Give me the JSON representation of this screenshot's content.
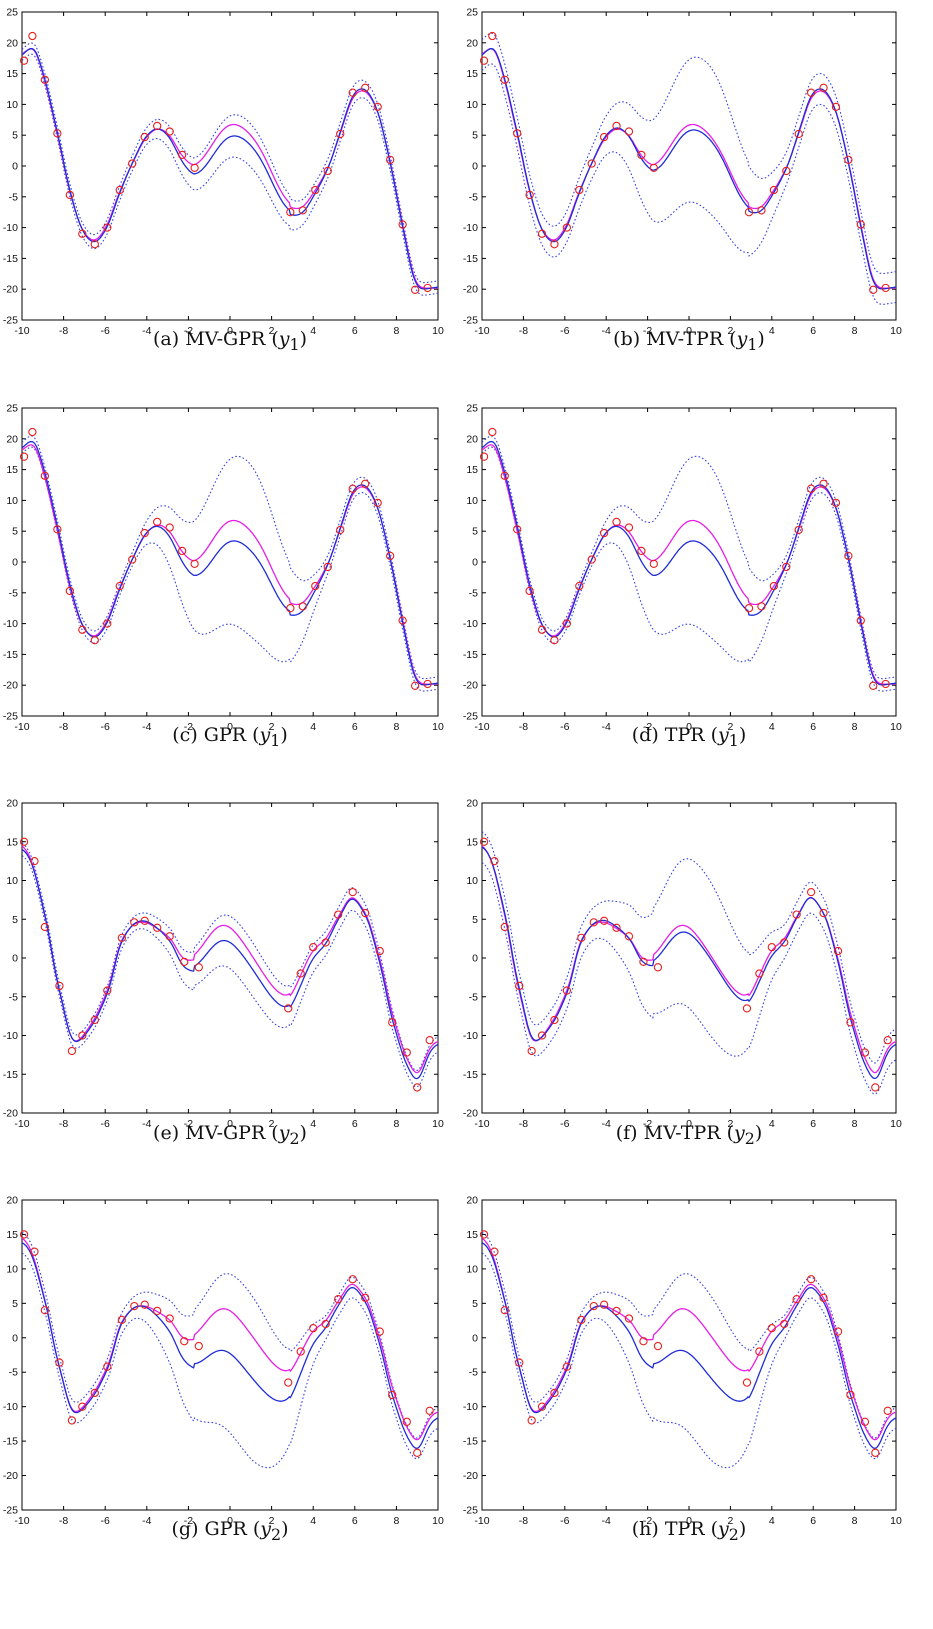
{
  "colors": {
    "observation_marker": "#e8201c",
    "mean_line": "#1f2cd6",
    "true_function": "#e61ee6",
    "band_line": "#3a44e0"
  },
  "chart_data": [
    {
      "type": "line",
      "panel": "a",
      "caption_prefix": "(a)  MV-GPR (",
      "caption_var": "y",
      "caption_sub": "1",
      "caption_suffix": ")",
      "xlim": [
        -10,
        10
      ],
      "ylim": [
        -25,
        25
      ],
      "xticks": [
        "-10",
        "-8",
        "-6",
        "-4",
        "-2",
        "0",
        "2",
        "4",
        "6",
        "8",
        "10"
      ],
      "yticks": [
        "-25",
        "-20",
        "-15",
        "-10",
        "-5",
        "0",
        "5",
        "10",
        "15",
        "20",
        "25"
      ],
      "grid": false,
      "model": "y1",
      "band_width": [
        0.9,
        1.2,
        3.5,
        1.5,
        1.0
      ],
      "mean_offset": [
        0.0,
        0.0,
        -2.0,
        0.0,
        0.0
      ],
      "series_points": {
        "observations": {
          "x": [
            -9.9,
            -9.5,
            -8.9,
            -8.3,
            -7.7,
            -7.1,
            -6.5,
            -5.9,
            -5.3,
            -4.7,
            -4.1,
            -3.5,
            -2.9,
            -2.3,
            -1.7,
            2.9,
            3.5,
            4.1,
            4.7,
            5.3,
            5.9,
            6.5,
            7.1,
            7.7,
            8.3,
            8.9,
            9.5
          ],
          "y": [
            17.1,
            21.1,
            14.0,
            5.3,
            -4.7,
            -11.0,
            -12.7,
            -10.0,
            -3.9,
            0.4,
            4.7,
            6.5,
            5.6,
            1.8,
            -0.3,
            -7.5,
            -7.2,
            -3.9,
            -0.8,
            5.2,
            11.9,
            12.7,
            9.6,
            1.0,
            -9.5,
            -20.1,
            -19.8
          ]
        }
      }
    },
    {
      "type": "line",
      "panel": "b",
      "caption_prefix": "(b)  MV-TPR (",
      "caption_var": "y",
      "caption_sub": "1",
      "caption_suffix": ")",
      "xlim": [
        -10,
        10
      ],
      "ylim": [
        -25,
        25
      ],
      "xticks": [
        "-10",
        "-8",
        "-6",
        "-4",
        "-2",
        "0",
        "2",
        "4",
        "6",
        "8",
        "10"
      ],
      "yticks": [
        "-25",
        "-20",
        "-15",
        "-10",
        "-5",
        "0",
        "5",
        "10",
        "15",
        "20",
        "25"
      ],
      "grid": false,
      "model": "y1",
      "band_width": [
        2.5,
        2.5,
        12.0,
        2.5,
        2.5
      ],
      "mean_offset": [
        0.0,
        0.0,
        -1.0,
        0.0,
        0.0
      ],
      "series_points": {
        "observations": {
          "x": [
            -9.9,
            -9.5,
            -8.9,
            -8.3,
            -7.7,
            -7.1,
            -6.5,
            -5.9,
            -5.3,
            -4.7,
            -4.1,
            -3.5,
            -2.9,
            -2.3,
            -1.7,
            2.9,
            3.5,
            4.1,
            4.7,
            5.3,
            5.9,
            6.5,
            7.1,
            7.7,
            8.3,
            8.9,
            9.5
          ],
          "y": [
            17.1,
            21.1,
            14.0,
            5.3,
            -4.7,
            -11.0,
            -12.7,
            -10.0,
            -3.9,
            0.4,
            4.7,
            6.5,
            5.6,
            1.8,
            -0.3,
            -7.5,
            -7.2,
            -3.9,
            -0.8,
            5.2,
            11.9,
            12.7,
            9.6,
            1.0,
            -9.5,
            -20.1,
            -19.8
          ]
        }
      }
    },
    {
      "type": "line",
      "panel": "c",
      "caption_prefix": "(c)  GPR (",
      "caption_var": "y",
      "caption_sub": "1",
      "caption_suffix": ")",
      "xlim": [
        -10,
        10
      ],
      "ylim": [
        -25,
        25
      ],
      "xticks": [
        "-10",
        "-8",
        "-6",
        "-4",
        "-2",
        "0",
        "2",
        "4",
        "6",
        "8",
        "10"
      ],
      "yticks": [
        "-25",
        "-20",
        "-15",
        "-10",
        "-5",
        "0",
        "5",
        "10",
        "15",
        "20",
        "25"
      ],
      "grid": false,
      "model": "y1",
      "band_width": [
        0.9,
        1.0,
        14.0,
        1.3,
        1.0
      ],
      "mean_offset": [
        0.5,
        0.0,
        -3.5,
        0.0,
        0.0
      ],
      "series_points": {
        "observations": {
          "x": [
            -9.9,
            -9.5,
            -8.9,
            -8.3,
            -7.7,
            -7.1,
            -6.5,
            -5.9,
            -5.3,
            -4.7,
            -4.1,
            -3.5,
            -2.9,
            -2.3,
            -1.7,
            2.9,
            3.5,
            4.1,
            4.7,
            5.3,
            5.9,
            6.5,
            7.1,
            7.7,
            8.3,
            8.9,
            9.5
          ],
          "y": [
            17.1,
            21.1,
            14.0,
            5.3,
            -4.7,
            -11.0,
            -12.7,
            -10.0,
            -3.9,
            0.4,
            4.7,
            6.5,
            5.6,
            1.8,
            -0.3,
            -7.5,
            -7.2,
            -3.9,
            -0.8,
            5.2,
            11.9,
            12.7,
            9.6,
            1.0,
            -9.5,
            -20.1,
            -19.8
          ]
        }
      }
    },
    {
      "type": "line",
      "panel": "d",
      "caption_prefix": "(d)  TPR (",
      "caption_var": "y",
      "caption_sub": "1",
      "caption_suffix": ")",
      "xlim": [
        -10,
        10
      ],
      "ylim": [
        -25,
        25
      ],
      "xticks": [
        "-10",
        "-8",
        "-6",
        "-4",
        "-2",
        "0",
        "2",
        "4",
        "6",
        "8",
        "10"
      ],
      "yticks": [
        "-25",
        "-20",
        "-15",
        "-10",
        "-5",
        "0",
        "5",
        "10",
        "15",
        "20",
        "25"
      ],
      "grid": false,
      "model": "y1",
      "band_width": [
        0.9,
        1.0,
        14.0,
        1.3,
        1.0
      ],
      "mean_offset": [
        0.5,
        0.0,
        -3.5,
        0.0,
        0.0
      ],
      "series_points": {
        "observations": {
          "x": [
            -9.9,
            -9.5,
            -8.9,
            -8.3,
            -7.7,
            -7.1,
            -6.5,
            -5.9,
            -5.3,
            -4.7,
            -4.1,
            -3.5,
            -2.9,
            -2.3,
            -1.7,
            2.9,
            3.5,
            4.1,
            4.7,
            5.3,
            5.9,
            6.5,
            7.1,
            7.7,
            8.3,
            8.9,
            9.5
          ],
          "y": [
            17.1,
            21.1,
            14.0,
            5.3,
            -4.7,
            -11.0,
            -12.7,
            -10.0,
            -3.9,
            0.4,
            4.7,
            6.5,
            5.6,
            1.8,
            -0.3,
            -7.5,
            -7.2,
            -3.9,
            -0.8,
            5.2,
            11.9,
            12.7,
            9.6,
            1.0,
            -9.5,
            -20.1,
            -19.8
          ]
        }
      }
    },
    {
      "type": "line",
      "panel": "e",
      "caption_prefix": "(e)  MV-GPR (",
      "caption_var": "y",
      "caption_sub": "2",
      "caption_suffix": ")",
      "xlim": [
        -10,
        10
      ],
      "ylim": [
        -20,
        20
      ],
      "xticks": [
        "-10",
        "-8",
        "-6",
        "-4",
        "-2",
        "0",
        "2",
        "4",
        "6",
        "8",
        "10"
      ],
      "yticks": [
        "-20",
        "-15",
        "-10",
        "-5",
        "0",
        "5",
        "10",
        "15",
        "20"
      ],
      "grid": false,
      "model": "y2",
      "band_width": [
        0.8,
        0.9,
        3.5,
        1.5,
        1.0
      ],
      "mean_offset": [
        -0.3,
        0.0,
        -2.0,
        -0.5,
        -0.5
      ],
      "series_points": {
        "observations": {
          "x": [
            -9.9,
            -9.4,
            -8.9,
            -8.2,
            -7.6,
            -7.1,
            -6.5,
            -5.9,
            -5.2,
            -4.6,
            -4.1,
            -3.5,
            -2.9,
            -2.2,
            -1.5,
            2.8,
            3.4,
            4.0,
            4.6,
            5.2,
            5.9,
            6.5,
            7.2,
            7.8,
            8.5,
            9.0,
            9.6
          ],
          "y": [
            15.0,
            12.5,
            4.0,
            -3.6,
            -12.0,
            -10.0,
            -8.0,
            -4.2,
            2.6,
            4.6,
            4.8,
            3.9,
            2.8,
            -0.5,
            -1.2,
            -6.5,
            -2.0,
            1.4,
            2.0,
            5.6,
            8.5,
            5.8,
            0.9,
            -8.3,
            -12.2,
            -16.7,
            -10.6
          ]
        }
      }
    },
    {
      "type": "line",
      "panel": "f",
      "caption_prefix": "(f)  MV-TPR (",
      "caption_var": "y",
      "caption_sub": "2",
      "caption_suffix": ")",
      "xlim": [
        -10,
        10
      ],
      "ylim": [
        -20,
        20
      ],
      "xticks": [
        "-10",
        "-8",
        "-6",
        "-4",
        "-2",
        "0",
        "2",
        "4",
        "6",
        "8",
        "10"
      ],
      "yticks": [
        "-20",
        "-15",
        "-10",
        "-5",
        "0",
        "5",
        "10",
        "15",
        "20"
      ],
      "grid": false,
      "model": "y2",
      "band_width": [
        2.0,
        2.0,
        10.0,
        2.0,
        2.0
      ],
      "mean_offset": [
        0.0,
        0.0,
        -0.8,
        -0.3,
        -0.5
      ],
      "series_points": {
        "observations": {
          "x": [
            -9.9,
            -9.4,
            -8.9,
            -8.2,
            -7.6,
            -7.1,
            -6.5,
            -5.9,
            -5.2,
            -4.6,
            -4.1,
            -3.5,
            -2.9,
            -2.2,
            -1.5,
            2.8,
            3.4,
            4.0,
            4.6,
            5.2,
            5.9,
            6.5,
            7.2,
            7.8,
            8.5,
            9.0,
            9.6
          ],
          "y": [
            15.0,
            12.5,
            4.0,
            -3.6,
            -12.0,
            -10.0,
            -8.0,
            -4.2,
            2.6,
            4.6,
            4.8,
            3.9,
            2.8,
            -0.5,
            -1.2,
            -6.5,
            -2.0,
            1.4,
            2.0,
            5.6,
            8.5,
            5.8,
            0.9,
            -8.3,
            -12.2,
            -16.7,
            -10.6
          ]
        }
      }
    },
    {
      "type": "line",
      "panel": "g",
      "caption_prefix": "(g)  GPR (",
      "caption_var": "y",
      "caption_sub": "2",
      "caption_suffix": ")",
      "xlim": [
        -10,
        10
      ],
      "ylim": [
        -25,
        20
      ],
      "xticks": [
        "-10",
        "-8",
        "-6",
        "-4",
        "-2",
        "0",
        "2",
        "4",
        "6",
        "8",
        "10"
      ],
      "yticks": [
        "-25",
        "-20",
        "-15",
        "-10",
        "-5",
        "0",
        "5",
        "10",
        "15",
        "20"
      ],
      "grid": false,
      "model": "y2",
      "band_width": [
        1.5,
        1.5,
        12.0,
        1.5,
        1.5
      ],
      "mean_offset": [
        -0.5,
        0.0,
        -6.5,
        -0.8,
        -1.0
      ],
      "series_points": {
        "observations": {
          "x": [
            -9.9,
            -9.4,
            -8.9,
            -8.2,
            -7.6,
            -7.1,
            -6.5,
            -5.9,
            -5.2,
            -4.6,
            -4.1,
            -3.5,
            -2.9,
            -2.2,
            -1.5,
            2.8,
            3.4,
            4.0,
            4.6,
            5.2,
            5.9,
            6.5,
            7.2,
            7.8,
            8.5,
            9.0,
            9.6
          ],
          "y": [
            15.0,
            12.5,
            4.0,
            -3.6,
            -12.0,
            -10.0,
            -8.0,
            -4.2,
            2.6,
            4.6,
            4.8,
            3.9,
            2.8,
            -0.5,
            -1.2,
            -6.5,
            -2.0,
            1.4,
            2.0,
            5.6,
            8.5,
            5.8,
            0.9,
            -8.3,
            -12.2,
            -16.7,
            -10.6
          ]
        }
      }
    },
    {
      "type": "line",
      "panel": "h",
      "caption_prefix": "(h)  TPR (",
      "caption_var": "y",
      "caption_sub": "2",
      "caption_suffix": ")",
      "xlim": [
        -10,
        10
      ],
      "ylim": [
        -25,
        20
      ],
      "xticks": [
        "-10",
        "-8",
        "-6",
        "-4",
        "-2",
        "0",
        "2",
        "4",
        "6",
        "8",
        "10"
      ],
      "yticks": [
        "-25",
        "-20",
        "-15",
        "-10",
        "-5",
        "0",
        "5",
        "10",
        "15",
        "20"
      ],
      "grid": false,
      "model": "y2",
      "band_width": [
        1.5,
        1.5,
        12.0,
        1.5,
        1.5
      ],
      "mean_offset": [
        -0.5,
        0.0,
        -6.5,
        -0.8,
        -1.0
      ],
      "series_points": {
        "observations": {
          "x": [
            -9.9,
            -9.4,
            -8.9,
            -8.2,
            -7.6,
            -7.1,
            -6.5,
            -5.9,
            -5.2,
            -4.6,
            -4.1,
            -3.5,
            -2.9,
            -2.2,
            -1.5,
            2.8,
            3.4,
            4.0,
            4.6,
            5.2,
            5.9,
            6.5,
            7.2,
            7.8,
            8.5,
            9.0,
            9.6
          ],
          "y": [
            15.0,
            12.5,
            4.0,
            -3.6,
            -12.0,
            -10.0,
            -8.0,
            -4.2,
            2.6,
            4.6,
            4.8,
            3.9,
            2.8,
            -0.5,
            -1.2,
            -6.5,
            -2.0,
            1.4,
            2.0,
            5.6,
            8.5,
            5.8,
            0.9,
            -8.3,
            -12.2,
            -16.7,
            -10.6
          ]
        }
      }
    }
  ]
}
